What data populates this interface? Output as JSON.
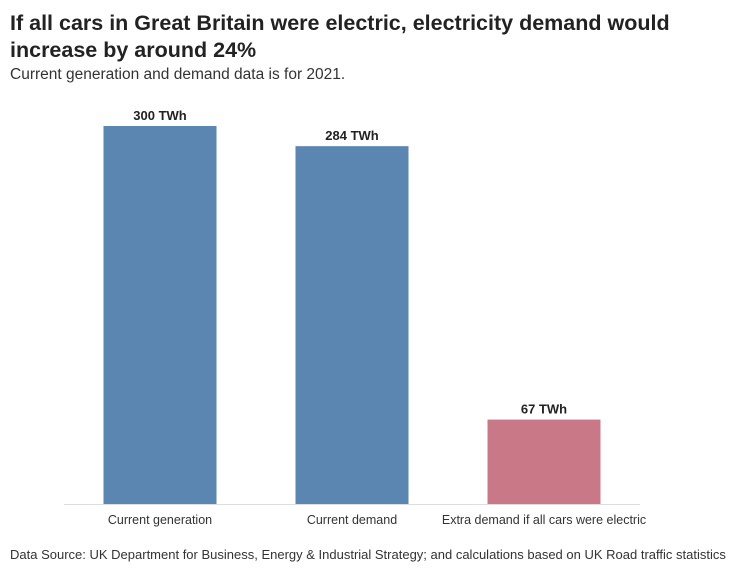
{
  "header": {
    "title": "If all cars in Great Britain were electric, electricity demand would increase by around 24%",
    "subtitle": "Current generation and demand data is for 2021."
  },
  "footer": {
    "source": "Data Source: UK Department for Business, Energy & Industrial Strategy; and calculations based on UK Road traffic statistics"
  },
  "colors": {
    "blue": "#5b86b2",
    "pink": "#c97888",
    "axis": "#dddddd"
  },
  "chart_data": {
    "type": "bar",
    "title": "If all cars in Great Britain were electric, electricity demand would increase by around 24%",
    "subtitle": "Current generation and demand data is for 2021.",
    "categories": [
      "Current generation",
      "Current demand",
      "Extra demand if all cars were electric"
    ],
    "values": [
      300,
      284,
      67
    ],
    "data_labels": [
      "300 TWh",
      "284 TWh",
      "67 TWh"
    ],
    "unit": "TWh",
    "bar_colors": [
      "#5b86b2",
      "#5b86b2",
      "#c97888"
    ],
    "xlabel": "",
    "ylabel": "",
    "ylim": [
      0,
      300
    ],
    "grid": false,
    "legend": "none"
  }
}
